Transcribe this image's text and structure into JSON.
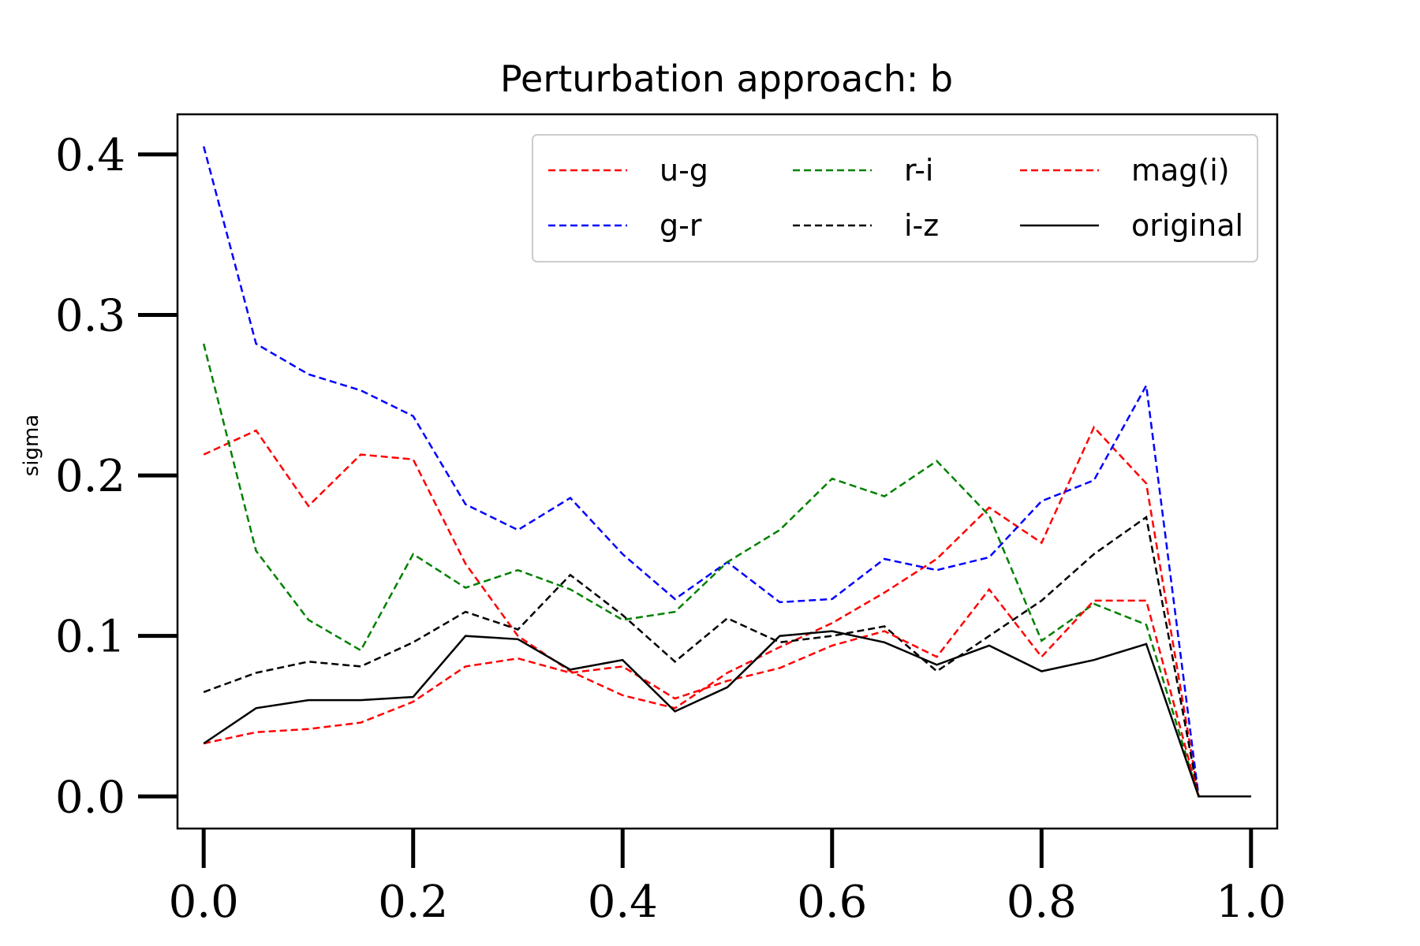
{
  "chart_data": {
    "type": "line",
    "title": "Perturbation approach: b",
    "xlabel": "",
    "ylabel": "sigma",
    "xlim": [
      -0.025,
      1.025
    ],
    "ylim": [
      -0.02,
      0.425
    ],
    "xticks": [
      0.0,
      0.2,
      0.4,
      0.6,
      0.8,
      1.0
    ],
    "xtick_labels": [
      "0.0",
      "0.2",
      "0.4",
      "0.6",
      "0.8",
      "1.0"
    ],
    "yticks": [
      0.0,
      0.1,
      0.2,
      0.3,
      0.4
    ],
    "ytick_labels": [
      "0.0",
      "0.1",
      "0.2",
      "0.3",
      "0.4"
    ],
    "grid": false,
    "legend_position": "top-right",
    "legend_columns": 3,
    "x": [
      0.0,
      0.05,
      0.1,
      0.15,
      0.2,
      0.25,
      0.3,
      0.35,
      0.4,
      0.45,
      0.5,
      0.55,
      0.6,
      0.65,
      0.7,
      0.75,
      0.8,
      0.85,
      0.9,
      0.95,
      1.0
    ],
    "series": [
      {
        "name": "u-g",
        "color": "#ff0000",
        "style": "dashed",
        "values": [
          0.213,
          0.228,
          0.181,
          0.213,
          0.21,
          0.145,
          0.1,
          0.078,
          0.063,
          0.055,
          0.077,
          0.093,
          0.108,
          0.127,
          0.148,
          0.18,
          0.158,
          0.23,
          0.195,
          0.0,
          0.0
        ]
      },
      {
        "name": "g-r",
        "color": "#0000ff",
        "style": "dashed",
        "values": [
          0.405,
          0.282,
          0.263,
          0.253,
          0.237,
          0.182,
          0.166,
          0.186,
          0.151,
          0.123,
          0.146,
          0.121,
          0.123,
          0.148,
          0.141,
          0.149,
          0.184,
          0.197,
          0.256,
          0.0,
          0.0
        ]
      },
      {
        "name": "r-i",
        "color": "#008000",
        "style": "dashed",
        "values": [
          0.282,
          0.153,
          0.11,
          0.091,
          0.151,
          0.13,
          0.141,
          0.129,
          0.11,
          0.115,
          0.146,
          0.166,
          0.198,
          0.187,
          0.209,
          0.175,
          0.097,
          0.12,
          0.107,
          0.0,
          0.0
        ]
      },
      {
        "name": "i-z",
        "color": "#000000",
        "style": "dashed",
        "values": [
          0.065,
          0.077,
          0.084,
          0.081,
          0.096,
          0.115,
          0.104,
          0.138,
          0.113,
          0.084,
          0.111,
          0.096,
          0.1,
          0.106,
          0.078,
          0.1,
          0.122,
          0.151,
          0.174,
          0.0,
          0.0
        ]
      },
      {
        "name": "mag(i)",
        "color": "#ff0000",
        "style": "dashed",
        "values": [
          0.033,
          0.04,
          0.042,
          0.046,
          0.059,
          0.081,
          0.086,
          0.077,
          0.081,
          0.061,
          0.072,
          0.08,
          0.094,
          0.103,
          0.087,
          0.129,
          0.087,
          0.122,
          0.122,
          0.0,
          0.0
        ]
      },
      {
        "name": "original",
        "color": "#000000",
        "style": "solid",
        "values": [
          0.033,
          0.055,
          0.06,
          0.06,
          0.062,
          0.1,
          0.098,
          0.079,
          0.085,
          0.053,
          0.068,
          0.1,
          0.103,
          0.096,
          0.082,
          0.094,
          0.078,
          0.085,
          0.095,
          0.0,
          0.0
        ]
      }
    ]
  }
}
